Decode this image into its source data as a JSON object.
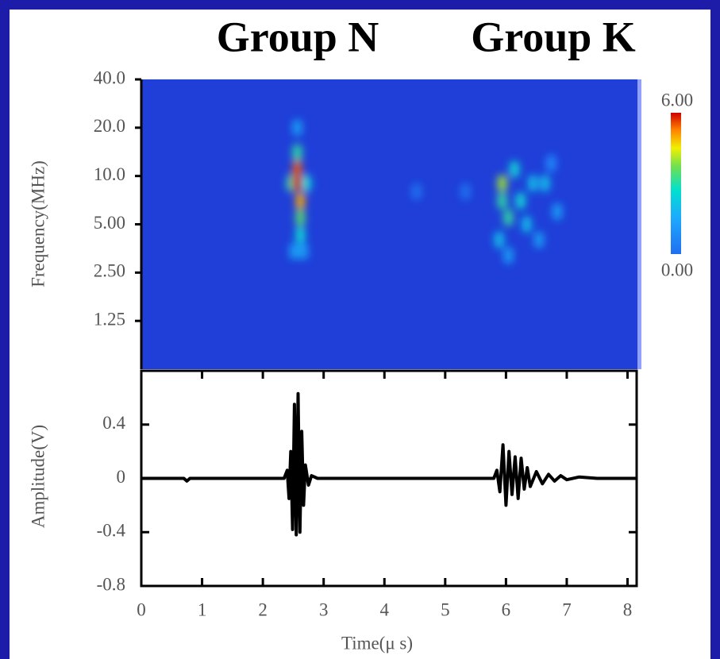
{
  "chart_data": [
    {
      "type": "heatmap",
      "annotations": [
        "Group N",
        "Group K"
      ],
      "y_label": "Frequency(MHz)",
      "log_y": true,
      "xlim": [
        0,
        8.15
      ],
      "ylim": [
        0.625,
        40
      ],
      "yticks": [
        {
          "value": 40,
          "label": "40.0"
        },
        {
          "value": 20,
          "label": "20.0"
        },
        {
          "value": 10,
          "label": "10.0"
        },
        {
          "value": 5,
          "label": "5.00"
        },
        {
          "value": 2.5,
          "label": "2.50"
        },
        1.25
      ],
      "zlim": [
        0,
        6
      ],
      "colorbar_ticks": [
        {
          "value": 6,
          "label": "6.00"
        },
        {
          "value": 0,
          "label": "0.00"
        }
      ],
      "x": [
        4.5,
        5.3,
        2.55,
        2.5,
        2.65,
        2.6,
        2.45,
        2.7,
        2.55,
        2.6,
        2.6,
        2.55,
        2.55,
        6.7,
        6.0,
        6.8,
        6.5,
        5.85,
        6.3,
        6.4,
        6.6,
        6.1,
        6.2,
        5.9,
        6.0,
        5.9
      ],
      "y": [
        8,
        8,
        20,
        3.4,
        3.4,
        4.3,
        9,
        9,
        14,
        5.5,
        7,
        11,
        9,
        12,
        3.2,
        6,
        4,
        4,
        5,
        9,
        9,
        11,
        7,
        7,
        5.5,
        9
      ],
      "z": [
        0.8,
        0.8,
        1.5,
        1.5,
        1.5,
        2.5,
        3,
        2.5,
        3,
        3.5,
        5,
        5.5,
        6,
        1.2,
        1.5,
        1.5,
        1.5,
        2,
        2,
        2,
        2,
        2.5,
        2.5,
        3,
        3,
        4
      ]
    },
    {
      "type": "line",
      "x_label": "Time(μ s)",
      "y_label": "Amplitude(V)",
      "color": "#000000",
      "xlim": [
        0,
        8.15
      ],
      "ylim": [
        -0.8,
        0.8
      ],
      "xticks": [
        0,
        1,
        2,
        3,
        4,
        5,
        6,
        7,
        8
      ],
      "yticks": [
        0.4,
        0,
        -0.4,
        -0.8
      ],
      "x": [
        0,
        0.7,
        0.75,
        0.8,
        2.35,
        2.4,
        2.43,
        2.46,
        2.49,
        2.52,
        2.55,
        2.58,
        2.61,
        2.64,
        2.67,
        2.7,
        2.75,
        2.8,
        2.9,
        3.0,
        5.0,
        5.8,
        5.85,
        5.9,
        5.95,
        6.0,
        6.05,
        6.1,
        6.15,
        6.2,
        6.25,
        6.3,
        6.35,
        6.4,
        6.5,
        6.6,
        6.7,
        6.8,
        6.9,
        7.0,
        7.2,
        7.5,
        8.15
      ],
      "values": [
        0,
        0,
        -0.02,
        0,
        0,
        0.06,
        -0.15,
        0.2,
        -0.38,
        0.55,
        -0.42,
        0.63,
        -0.4,
        0.35,
        -0.2,
        0.1,
        -0.05,
        0.02,
        0,
        0,
        0,
        0,
        0.06,
        -0.1,
        0.25,
        -0.2,
        0.2,
        -0.12,
        0.16,
        -0.15,
        0.15,
        -0.08,
        0.08,
        -0.06,
        0.05,
        -0.04,
        0.03,
        -0.02,
        0.02,
        -0.01,
        0.01,
        0,
        0
      ]
    }
  ]
}
